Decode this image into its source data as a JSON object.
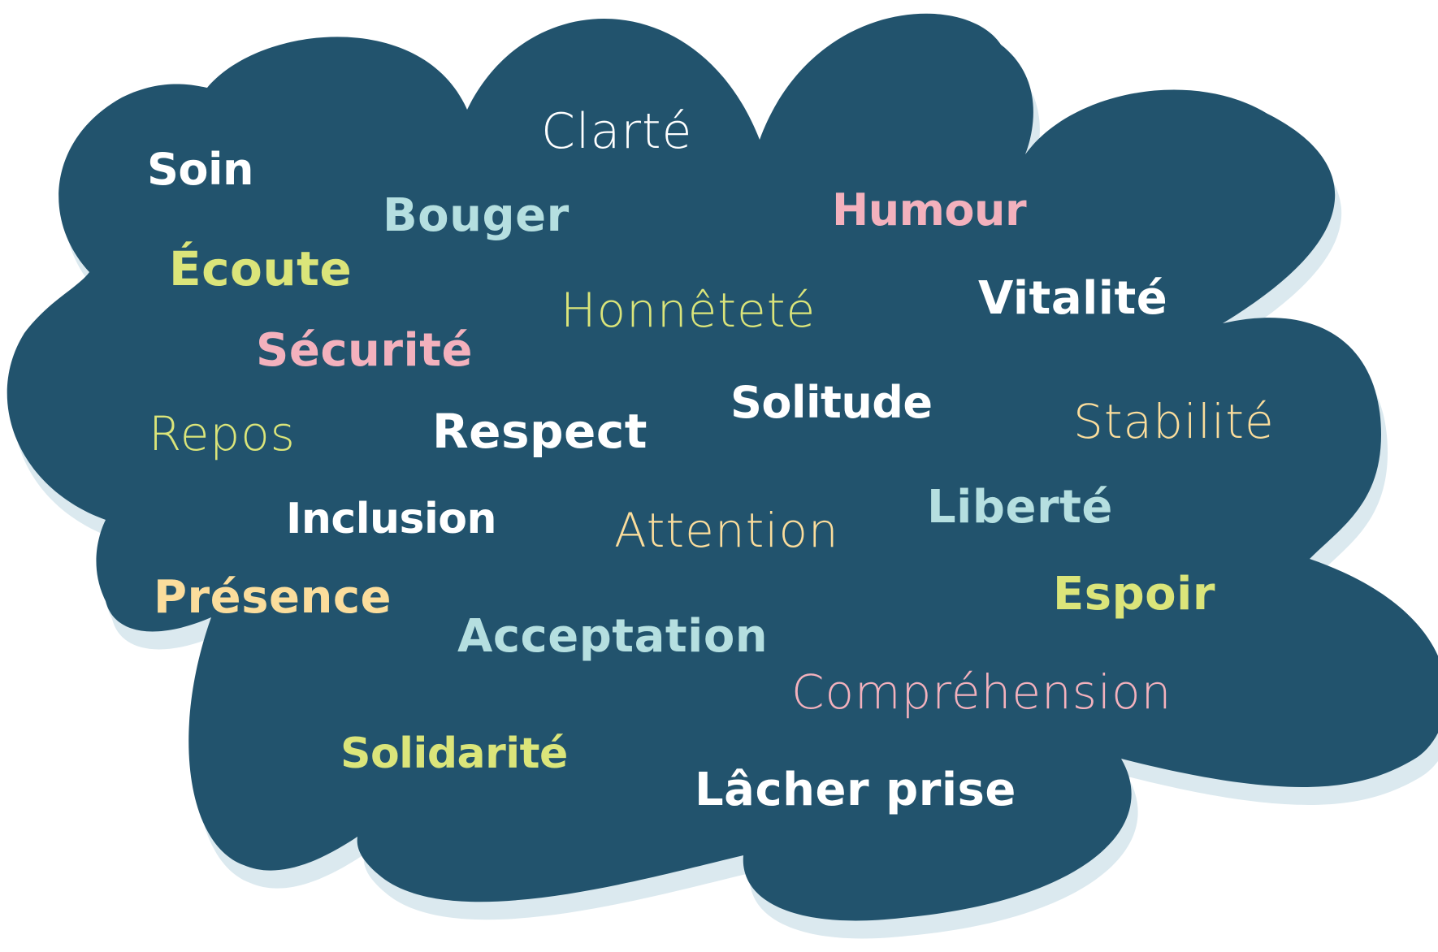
{
  "colors": {
    "cloud_fill": "#22536d",
    "cloud_shadow": "#dbe9ef",
    "white": "#ffffff",
    "light_blue": "#b5dfe0",
    "pink": "#f3b1bd",
    "green": "#dbe57a",
    "yellow": "#fbdd9c"
  },
  "words": [
    {
      "id": "soin",
      "text": "Soin",
      "color": "white"
    },
    {
      "id": "clarte",
      "text": "Clarté",
      "color": "white"
    },
    {
      "id": "bouger",
      "text": "Bouger",
      "color": "light_blue"
    },
    {
      "id": "humour",
      "text": "Humour",
      "color": "pink"
    },
    {
      "id": "ecoute",
      "text": "Écoute",
      "color": "green"
    },
    {
      "id": "honnetete",
      "text": "Honnêteté",
      "color": "green"
    },
    {
      "id": "vitalite",
      "text": "Vitalité",
      "color": "white"
    },
    {
      "id": "securite",
      "text": "Sécurité",
      "color": "pink"
    },
    {
      "id": "solitude",
      "text": "Solitude",
      "color": "white"
    },
    {
      "id": "repos",
      "text": "Repos",
      "color": "green"
    },
    {
      "id": "respect",
      "text": "Respect",
      "color": "white"
    },
    {
      "id": "stabilite",
      "text": "Stabilité",
      "color": "yellow"
    },
    {
      "id": "inclusion",
      "text": "Inclusion",
      "color": "white"
    },
    {
      "id": "liberte",
      "text": "Liberté",
      "color": "light_blue"
    },
    {
      "id": "attention",
      "text": "Attention",
      "color": "yellow"
    },
    {
      "id": "presence",
      "text": "Présence",
      "color": "yellow"
    },
    {
      "id": "espoir",
      "text": "Espoir",
      "color": "green"
    },
    {
      "id": "acceptation",
      "text": "Acceptation",
      "color": "light_blue"
    },
    {
      "id": "comprehension",
      "text": "Compréhension",
      "color": "pink"
    },
    {
      "id": "solidarite",
      "text": "Solidarité",
      "color": "green"
    },
    {
      "id": "lacher_prise",
      "text": "Lâcher prise",
      "color": "white"
    }
  ]
}
